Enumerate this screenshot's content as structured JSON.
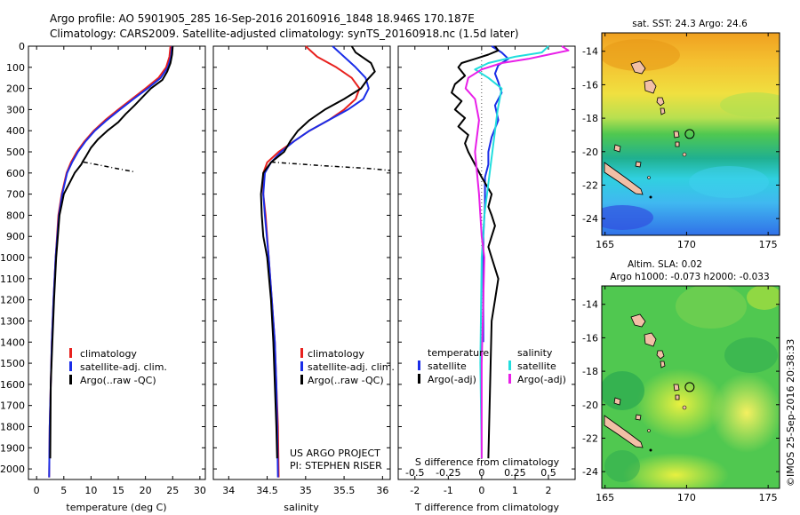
{
  "title": {
    "line1": "Argo profile: AO 5901905_285 16-Sep-2016 20160916_1848 18.946S 170.187E",
    "line2": "Climatology: CARS2009. Satellite-adjusted climatology: synTS_20160918.nc (1.5d later)"
  },
  "legend_tsal": {
    "climatology": "climatology",
    "satellite": "satellite-adj. clim.",
    "argo": "Argo(..raw -QC)"
  },
  "legend_diff": {
    "temperature_header": "temperature",
    "salinity_header": "salinity",
    "satellite": "satellite",
    "argo": "Argo(-adj)"
  },
  "credits": {
    "project": "US ARGO PROJECT",
    "pi": "PI: STEPHEN RISER"
  },
  "diff_label_top": "S difference from climatology",
  "diff_label_bottom": "T difference from climatology",
  "maps": {
    "sst": {
      "label": "sat. SST: 24.3 Argo: 24.6"
    },
    "sla": {
      "label1": "Altim. SLA: 0.02",
      "label2": "Argo h1000: -0.073 h2000: -0.033"
    },
    "lat_ticks": [
      -14,
      -16,
      -18,
      -20,
      -22,
      -24
    ],
    "lat_tick_labels": [
      "-14",
      "-16",
      "-18",
      "-20",
      "-22",
      "-24"
    ],
    "lon_ticks": [
      165,
      170,
      175
    ],
    "lon_tick_labels": [
      "165",
      "170",
      "175"
    ],
    "float_position": {
      "lon": 170.187,
      "lat": -18.946
    }
  },
  "timestamp": "©IMOS 25-Sep-2016 20:38:33",
  "colors": {
    "climatology": "#e8211e",
    "satellite": "#1a2de8",
    "argo": "#000000",
    "sal_satellite": "#22dede",
    "sal_argo": "#e81fe8",
    "land": "#f2bfa6"
  },
  "chart_data": [
    {
      "type": "line",
      "xlabel": "temperature (deg C)",
      "ylabel": "",
      "xlim": [
        -1.5,
        31
      ],
      "ylim": [
        2050,
        0
      ],
      "xticks": [
        0,
        5,
        10,
        15,
        20,
        25,
        30
      ],
      "xtick_labels": [
        "0",
        "5",
        "10",
        "15",
        "20",
        "25",
        "30"
      ],
      "yticks": [
        0,
        100,
        200,
        300,
        400,
        500,
        600,
        700,
        800,
        900,
        1000,
        1100,
        1200,
        1300,
        1400,
        1500,
        1600,
        1700,
        1800,
        1900,
        2000
      ],
      "ytick_labels": [
        "0",
        "100",
        "200",
        "300",
        "400",
        "500",
        "600",
        "700",
        "800",
        "900",
        "1000",
        "1100",
        "1200",
        "1300",
        "1400",
        "1500",
        "1600",
        "1700",
        "1800",
        "1900",
        "2000"
      ],
      "series": [
        {
          "name": "climatology",
          "color": "#e8211e",
          "dash": "",
          "x": [
            24.6,
            24.4,
            23.8,
            22.4,
            20.0,
            17.5,
            15.0,
            12.6,
            10.5,
            8.8,
            7.4,
            6.3,
            5.5,
            4.6,
            4.0,
            3.5,
            3.1,
            2.8,
            2.6,
            2.4,
            2.3
          ],
          "y": [
            0,
            50,
            100,
            150,
            200,
            250,
            300,
            350,
            400,
            450,
            500,
            550,
            600,
            700,
            800,
            1000,
            1200,
            1400,
            1600,
            1800,
            2040
          ]
        },
        {
          "name": "satellite-adj. clim.",
          "color": "#1a2de8",
          "dash": "",
          "x": [
            24.9,
            24.7,
            24.1,
            22.8,
            20.4,
            17.8,
            15.3,
            12.9,
            10.7,
            9.0,
            7.6,
            6.5,
            5.6,
            4.7,
            4.1,
            3.5,
            3.1,
            2.8,
            2.6,
            2.4,
            2.3
          ],
          "y": [
            0,
            50,
            100,
            150,
            200,
            250,
            300,
            350,
            400,
            450,
            500,
            550,
            600,
            700,
            800,
            1000,
            1200,
            1400,
            1600,
            1800,
            2040
          ]
        },
        {
          "name": "Argo(..raw -QC)",
          "color": "#000000",
          "dash": "",
          "x": [
            25.0,
            24.9,
            24.6,
            24.0,
            23.1,
            21.0,
            19.5,
            18.0,
            16.4,
            15.0,
            13.0,
            11.3,
            10.0,
            9.1,
            8.5,
            8.2,
            7.0,
            6.0,
            5.0,
            4.6,
            4.2,
            3.6,
            3.2,
            2.9,
            2.6,
            2.5
          ],
          "y": [
            0,
            40,
            80,
            120,
            160,
            200,
            240,
            280,
            320,
            360,
            400,
            440,
            480,
            520,
            545,
            560,
            600,
            650,
            700,
            750,
            800,
            1000,
            1200,
            1400,
            1600,
            1950
          ]
        },
        {
          "name": "Argo spike",
          "color": "#000000",
          "dash": "5,3,1,3",
          "x": [
            8.6,
            12.0,
            15.0,
            18.0
          ],
          "y": [
            548,
            565,
            580,
            595
          ]
        }
      ]
    },
    {
      "type": "line",
      "xlabel": "salinity",
      "ylabel": "",
      "xlim": [
        33.8,
        36.1
      ],
      "ylim": [
        2050,
        0
      ],
      "xticks": [
        34,
        34.5,
        35,
        35.5,
        36
      ],
      "xtick_labels": [
        "34",
        "34.5",
        "35",
        "35.5",
        "36"
      ],
      "series": [
        {
          "name": "climatology",
          "color": "#e8211e",
          "dash": "",
          "x": [
            35.0,
            35.15,
            35.4,
            35.6,
            35.7,
            35.65,
            35.5,
            35.3,
            35.05,
            34.85,
            34.65,
            34.5,
            34.45,
            34.45,
            34.48,
            34.52,
            34.56,
            34.6,
            34.62,
            34.64,
            34.65
          ],
          "y": [
            0,
            50,
            100,
            150,
            200,
            250,
            300,
            350,
            400,
            450,
            500,
            550,
            600,
            700,
            800,
            1000,
            1200,
            1400,
            1600,
            1800,
            2040
          ]
        },
        {
          "name": "satellite-adj. clim.",
          "color": "#1a2de8",
          "dash": "",
          "x": [
            35.35,
            35.5,
            35.65,
            35.78,
            35.82,
            35.75,
            35.55,
            35.3,
            35.05,
            34.85,
            34.68,
            34.55,
            34.47,
            34.45,
            34.47,
            34.52,
            34.56,
            34.6,
            34.62,
            34.63,
            34.64
          ],
          "y": [
            0,
            50,
            100,
            150,
            200,
            250,
            300,
            350,
            400,
            450,
            500,
            550,
            600,
            700,
            800,
            1000,
            1200,
            1400,
            1600,
            1800,
            2040
          ]
        },
        {
          "name": "Argo(..raw -QC)",
          "color": "#000000",
          "dash": "",
          "x": [
            35.6,
            35.65,
            35.85,
            35.9,
            35.8,
            35.72,
            35.5,
            35.25,
            35.05,
            34.9,
            34.8,
            34.72,
            34.55,
            34.45,
            34.42,
            34.43,
            34.45,
            34.5,
            34.55,
            34.58,
            34.6,
            34.62,
            34.63
          ],
          "y": [
            0,
            30,
            80,
            120,
            160,
            200,
            250,
            300,
            350,
            400,
            450,
            500,
            550,
            600,
            700,
            800,
            900,
            1000,
            1200,
            1400,
            1600,
            1800,
            1950
          ]
        },
        {
          "name": "Argo spike",
          "color": "#000000",
          "dash": "5,3,1,3",
          "x": [
            34.55,
            35.2,
            35.8,
            36.1
          ],
          "y": [
            548,
            565,
            578,
            588
          ]
        }
      ]
    },
    {
      "type": "line",
      "xlabel": "T difference from climatology",
      "x2label": "S difference from climatology",
      "xlim": [
        -2.5,
        2.8
      ],
      "x2lim": [
        -0.625,
        0.7
      ],
      "ylim": [
        2050,
        0
      ],
      "xticks": [
        -2,
        -1,
        0,
        1,
        2
      ],
      "xtick_labels": [
        "-2",
        "-1",
        "0",
        "1",
        "2"
      ],
      "x2ticks": [
        -0.5,
        -0.25,
        0,
        0.25,
        0.5
      ],
      "x2tick_labels": [
        "-0.5",
        "-0.25",
        "0",
        "0.25",
        "0.5"
      ],
      "series": [
        {
          "name": "temperature satellite",
          "color": "#1a2de8",
          "axis": "T",
          "x": [
            0.3,
            0.6,
            0.8,
            0.5,
            0.4,
            0.5,
            0.6,
            0.4,
            0.5,
            0.3,
            0.2,
            0.2,
            0.1,
            0.1,
            0.05,
            0.05
          ],
          "y": [
            0,
            30,
            60,
            90,
            130,
            170,
            220,
            280,
            350,
            430,
            500,
            560,
            620,
            750,
            900,
            1400
          ]
        },
        {
          "name": "temperature Argo(-adj)",
          "color": "#000000",
          "axis": "T",
          "x": [
            0.4,
            0.5,
            0.2,
            -0.2,
            -0.6,
            -0.7,
            -0.5,
            -0.8,
            -0.9,
            -0.6,
            -0.8,
            -0.5,
            -0.7,
            -0.4,
            -0.5,
            -0.4,
            -0.2,
            0.0,
            0.3,
            0.2,
            0.3,
            0.4,
            0.3,
            0.2,
            0.3,
            0.5,
            0.4,
            0.3,
            0.2
          ],
          "y": [
            0,
            20,
            40,
            60,
            80,
            100,
            140,
            180,
            220,
            260,
            300,
            340,
            380,
            420,
            460,
            500,
            560,
            620,
            700,
            760,
            800,
            850,
            900,
            950,
            1000,
            1100,
            1200,
            1300,
            1950
          ]
        },
        {
          "name": "salinity satellite",
          "color": "#22dede",
          "axis": "S",
          "x": [
            0.5,
            0.45,
            0.25,
            0.05,
            -0.05,
            0.05,
            0.15,
            0.12,
            0.1,
            0.08,
            0.06,
            0.04,
            0.02,
            0.0,
            -0.01,
            0.0
          ],
          "y": [
            0,
            30,
            50,
            80,
            110,
            150,
            200,
            300,
            400,
            500,
            600,
            700,
            800,
            1000,
            1500,
            1950
          ]
        },
        {
          "name": "salinity Argo(-adj)",
          "color": "#e81fe8",
          "axis": "S",
          "x": [
            0.6,
            0.65,
            0.5,
            0.35,
            0.15,
            0.0,
            -0.1,
            -0.12,
            -0.05,
            -0.02,
            -0.05,
            -0.02,
            0.0,
            0.02,
            0.0,
            0.0
          ],
          "y": [
            0,
            20,
            40,
            60,
            80,
            110,
            150,
            200,
            250,
            350,
            500,
            700,
            900,
            1000,
            1500,
            1950
          ]
        }
      ]
    }
  ]
}
